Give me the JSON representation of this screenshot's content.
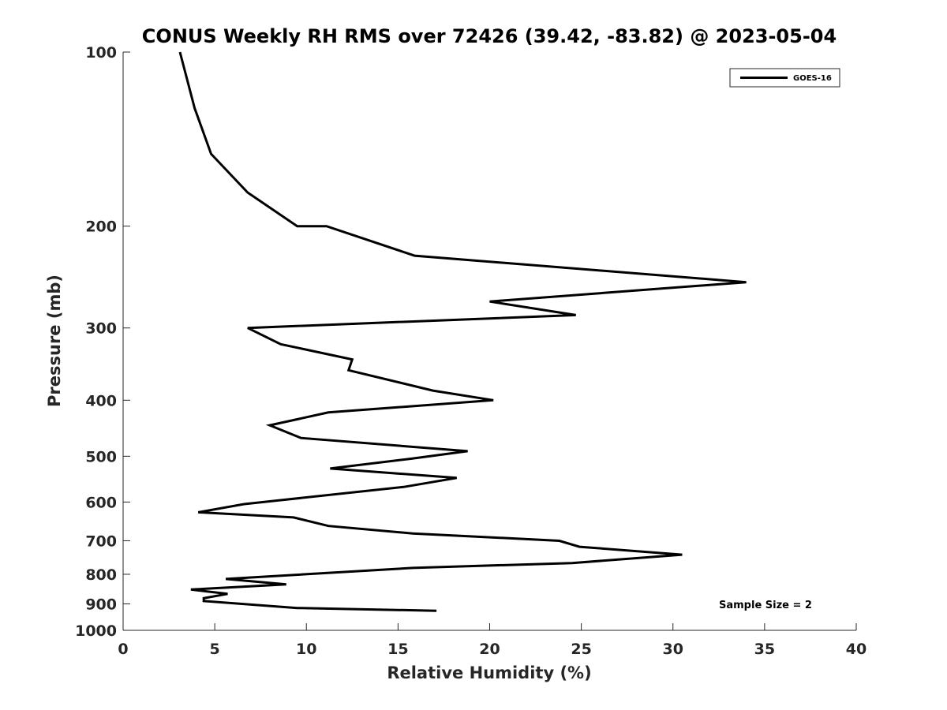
{
  "chart_data": {
    "type": "line",
    "title": "CONUS Weekly RH RMS over 72426 (39.42, -83.82) @ 2023-05-04",
    "xlabel": "Relative Humidity (%)",
    "ylabel": "Pressure (mb)",
    "xlim": [
      0,
      40
    ],
    "ylim": [
      1000,
      100
    ],
    "yscale": "log",
    "y_reversed": true,
    "grid": false,
    "legend_position": "top-right",
    "x_ticks": [
      "0",
      "5",
      "10",
      "15",
      "20",
      "25",
      "30",
      "35",
      "40"
    ],
    "y_ticks": [
      "100",
      "200",
      "300",
      "400",
      "500",
      "600",
      "700",
      "800",
      "900",
      "1000"
    ],
    "annotation": "Sample Size = 2",
    "series": [
      {
        "name": "GOES-16",
        "color": "#000000",
        "points": [
          [
            3.1,
            100
          ],
          [
            3.9,
            125
          ],
          [
            4.8,
            150
          ],
          [
            6.8,
            175
          ],
          [
            9.5,
            200
          ],
          [
            11.1,
            200
          ],
          [
            15.9,
            225
          ],
          [
            34.0,
            250
          ],
          [
            20.0,
            270
          ],
          [
            24.7,
            285
          ],
          [
            6.8,
            300
          ],
          [
            8.6,
            320
          ],
          [
            12.5,
            340
          ],
          [
            12.3,
            355
          ],
          [
            16.9,
            385
          ],
          [
            20.2,
            400
          ],
          [
            11.2,
            420
          ],
          [
            8.0,
            442
          ],
          [
            9.7,
            465
          ],
          [
            18.8,
            490
          ],
          [
            15.7,
            505
          ],
          [
            11.3,
            525
          ],
          [
            18.2,
            545
          ],
          [
            15.3,
            565
          ],
          [
            6.6,
            605
          ],
          [
            4.1,
            625
          ],
          [
            9.3,
            638
          ],
          [
            11.2,
            660
          ],
          [
            15.8,
            680
          ],
          [
            23.8,
            700
          ],
          [
            24.9,
            717
          ],
          [
            30.5,
            740
          ],
          [
            24.5,
            765
          ],
          [
            15.8,
            780
          ],
          [
            5.6,
            815
          ],
          [
            8.9,
            833
          ],
          [
            3.7,
            850
          ],
          [
            5.7,
            865
          ],
          [
            4.4,
            880
          ],
          [
            4.4,
            890
          ],
          [
            9.5,
            915
          ],
          [
            17.1,
            925
          ]
        ]
      }
    ]
  }
}
